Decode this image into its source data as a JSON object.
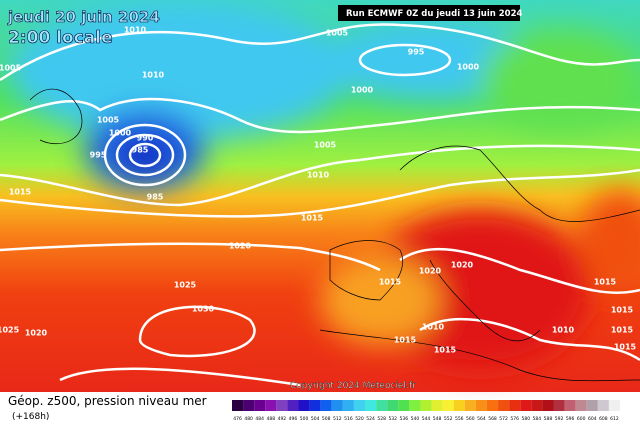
{
  "header": {
    "valid_date": "jeudi 20 juin 2024",
    "local_time": "2:00 locale",
    "run": "Run ECMWF 0Z du jeudi 13 juin 2024",
    "copyright": "Copyright 2024 Meteociel.fr"
  },
  "footer": {
    "title": "Géop. z500, pression niveau mer",
    "lead": "(+168h)"
  },
  "isobars": {
    "labels": [
      "1010",
      "1005",
      "1010",
      "1005",
      "995",
      "1000",
      "1000",
      "1005",
      "1000",
      "990",
      "985",
      "995",
      "985",
      "1005",
      "1010",
      "1015",
      "1015",
      "1020",
      "1025",
      "1030",
      "1025",
      "1020",
      "1015",
      "1020",
      "1020",
      "1015",
      "1015",
      "1010",
      "1015",
      "1015",
      "1010",
      "1015",
      "1015"
    ]
  },
  "colorscale": {
    "labels": [
      "476",
      "480",
      "484",
      "488",
      "492",
      "496",
      "500",
      "504",
      "508",
      "512",
      "516",
      "520",
      "524",
      "528",
      "532",
      "536",
      "540",
      "544",
      "548",
      "552",
      "556",
      "560",
      "564",
      "568",
      "572",
      "576",
      "580",
      "584",
      "588",
      "592",
      "596",
      "600",
      "604",
      "608",
      "612"
    ],
    "colors": [
      "#2a0040",
      "#4a0070",
      "#6a0090",
      "#8a10b0",
      "#8040c0",
      "#5020c0",
      "#2010c8",
      "#1030e0",
      "#1060f0",
      "#2090f0",
      "#30b0f0",
      "#40d0f0",
      "#40e8e0",
      "#40e0a0",
      "#40d870",
      "#50e050",
      "#80f040",
      "#b0f030",
      "#e0f030",
      "#f8f030",
      "#f8d020",
      "#f8b020",
      "#f89018",
      "#f87010",
      "#f05010",
      "#e83010",
      "#e01818",
      "#c81818",
      "#b01018",
      "#b03040",
      "#c06070",
      "#c08890",
      "#b0a0a8",
      "#d0c8d0",
      "#f0f0f0"
    ]
  }
}
